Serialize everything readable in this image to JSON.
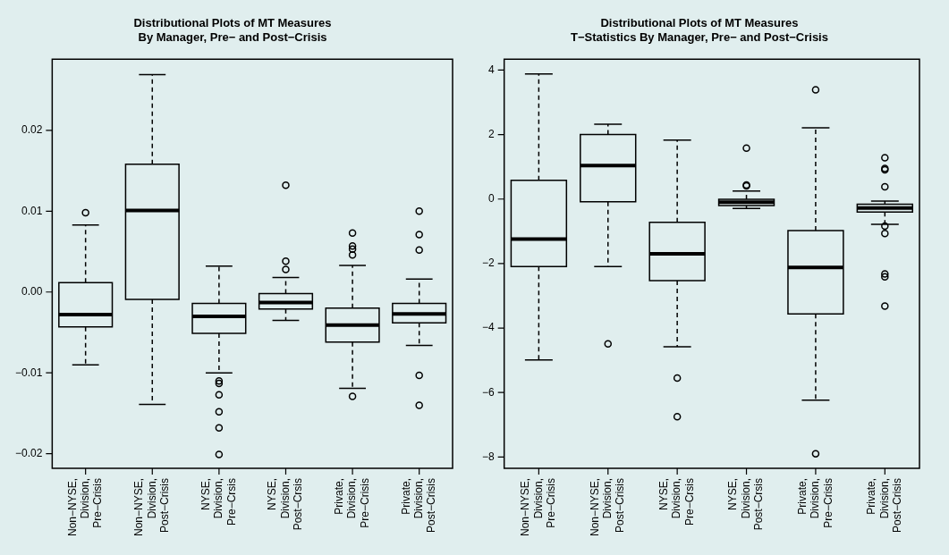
{
  "chart_data": [
    {
      "type": "box",
      "title": "Distributional Plots of MT Measures\nBy Manager, Pre− and Post−Crisis",
      "categories": [
        "Non−NYSE, Division, Pre−Crisis",
        "Non−NYSE, Division, Post−Crisis",
        "NYSE, Division, Pre−Crsis",
        "NYSE, Division, Post−Crsis",
        "Private, Division, Pre−Crisis",
        "Private, Division, Post−Crisis"
      ],
      "color": "#e0eeee",
      "ylim": [
        -0.0218,
        0.0288
      ],
      "yticks": [
        {
          "value": -0.02,
          "label": "−0.02"
        },
        {
          "value": -0.01,
          "label": "−0.01"
        },
        {
          "value": 0,
          "label": "0.00"
        },
        0.01,
        0.02
      ],
      "grid": false,
      "legend": false,
      "boxes": [
        {
          "low": -0.009,
          "q1": -0.0043,
          "median": -0.0028,
          "q3": 0.00117,
          "high": 0.00828,
          "outliers": [
            0.0098
          ]
        },
        {
          "low": -0.0139,
          "q1": -0.0009,
          "median": 0.0101,
          "q3": 0.0158,
          "high": 0.0269
        },
        {
          "low": -0.01,
          "q1": -0.0051,
          "median": -0.003,
          "q3": -0.0014,
          "high": 0.0032,
          "outliers": [
            -0.011,
            -0.0113,
            -0.0127,
            -0.0148,
            -0.0168,
            -0.0201
          ]
        },
        {
          "low": -0.0035,
          "q1": -0.0021,
          "median": -0.0013,
          "q3": -0.0002,
          "high": 0.0018,
          "outliers": [
            0.0132,
            0.0038,
            0.0028
          ]
        },
        {
          "low": -0.0119,
          "q1": -0.0062,
          "median": -0.0041,
          "q3": -0.002,
          "high": 0.0033,
          "outliers": [
            0.0073,
            0.0057,
            0.0053,
            0.0046,
            -0.0129
          ]
        },
        {
          "low": -0.0066,
          "q1": -0.0038,
          "median": -0.0027,
          "q3": -0.0014,
          "high": 0.0016,
          "outliers": [
            0.01,
            0.0071,
            0.0052,
            -0.0103,
            -0.014
          ]
        }
      ]
    },
    {
      "type": "box",
      "title": "Distributional Plots of MT Measures\nT−Statistics By Manager, Pre− and Post−Crisis",
      "categories": [
        "Non−NYSE, Division, Pre−Crisis",
        "Non−NYSE, Division, Post−Crisis",
        "NYSE, Division, Pre−Crsis",
        "NYSE, Division, Post−Crsis",
        "Private, Division, Pre−Crisis",
        "Private, Division, Post−Crisis"
      ],
      "color": "#e0eeee",
      "ylim": [
        -8.35,
        4.34
      ],
      "yticks": [
        {
          "value": -8,
          "label": "−8"
        },
        {
          "value": -6,
          "label": "−6"
        },
        {
          "value": -4,
          "label": "−4"
        },
        {
          "value": -2,
          "label": "−2"
        },
        0,
        2,
        4
      ],
      "grid": false,
      "legend": false,
      "boxes": [
        {
          "low": -4.99,
          "q1": -2.09,
          "median": -1.24,
          "q3": 0.58,
          "high": 3.88
        },
        {
          "low": -2.09,
          "q1": -0.08,
          "median": 1.04,
          "q3": 2.0,
          "high": 2.32,
          "outliers": [
            -4.49
          ]
        },
        {
          "low": -4.58,
          "q1": -2.53,
          "median": -1.7,
          "q3": -0.72,
          "high": 1.83,
          "outliers": [
            -5.55,
            -6.75
          ]
        },
        {
          "low": -0.29,
          "q1": -0.2,
          "median": -0.1,
          "q3": -0.01,
          "high": 0.25,
          "outliers": [
            1.58,
            0.44,
            0.41
          ]
        },
        {
          "low": -6.24,
          "q1": -3.56,
          "median": -2.12,
          "q3": -0.98,
          "high": 2.21,
          "outliers": [
            3.39,
            -7.9
          ]
        },
        {
          "low": -0.78,
          "q1": -0.4,
          "median": -0.28,
          "q3": -0.16,
          "high": -0.06,
          "outliers": [
            1.28,
            0.95,
            0.91,
            0.38,
            -0.84,
            -1.07,
            -2.32,
            -2.41,
            -3.32
          ]
        }
      ]
    }
  ]
}
